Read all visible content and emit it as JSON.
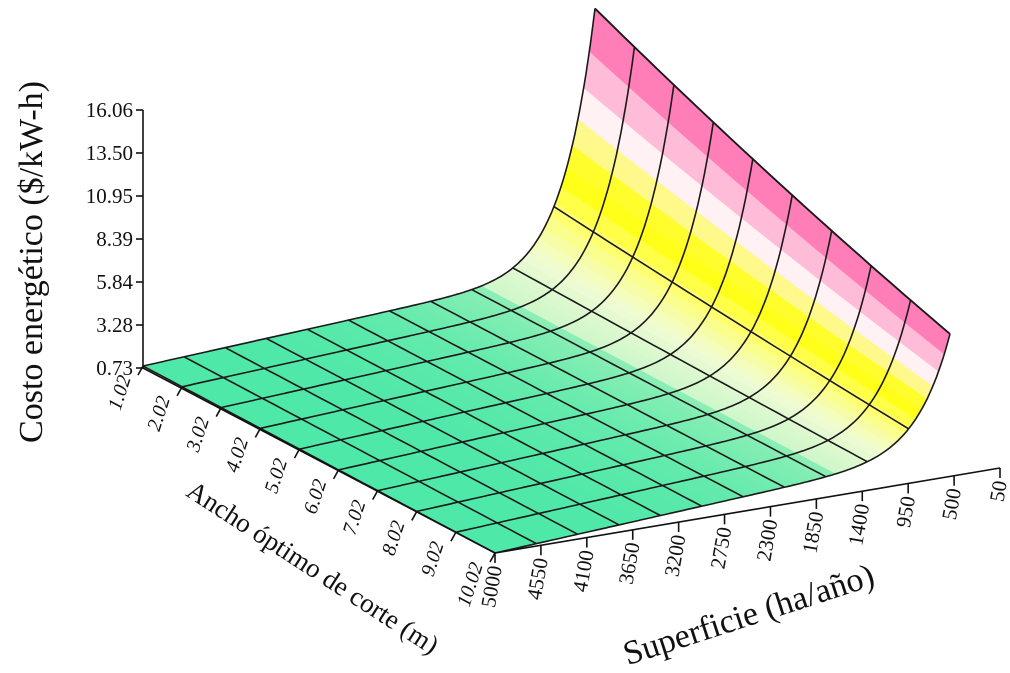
{
  "chart_data": {
    "type": "surface",
    "zlabel": "Costo energético  ($/kW-h)",
    "xlabel": "Ancho óptimo de corte  (m)",
    "ylabel": "Superficie  (ha/año)",
    "z_ticks": [
      "16.06",
      "13.50",
      "10.95",
      "8.39",
      "5.84",
      "3.28",
      "0.73"
    ],
    "x_ticks": [
      "1.02",
      "2.02",
      "3.02",
      "4.02",
      "5.02",
      "6.02",
      "7.02",
      "8.02",
      "9.02",
      "10.02"
    ],
    "y_ticks": [
      "5000",
      "4550",
      "4100",
      "3650",
      "3200",
      "2750",
      "2300",
      "1850",
      "1400",
      "950",
      "500",
      "50"
    ],
    "zlim": [
      0.73,
      16.06
    ],
    "xlim": [
      1.02,
      10.02
    ],
    "ylim": [
      5000,
      50
    ],
    "colormap": [
      "#4de8a6",
      "#c8f5c0",
      "#ffffa0",
      "#ffff00",
      "#ff99cc",
      "#ff0044"
    ],
    "surface_description_values": {
      "cost_at_min_surface_min_width": 16.06,
      "cost_at_min_surface_max_width": 9.8,
      "cost_floor": 0.73
    },
    "grid": true
  }
}
